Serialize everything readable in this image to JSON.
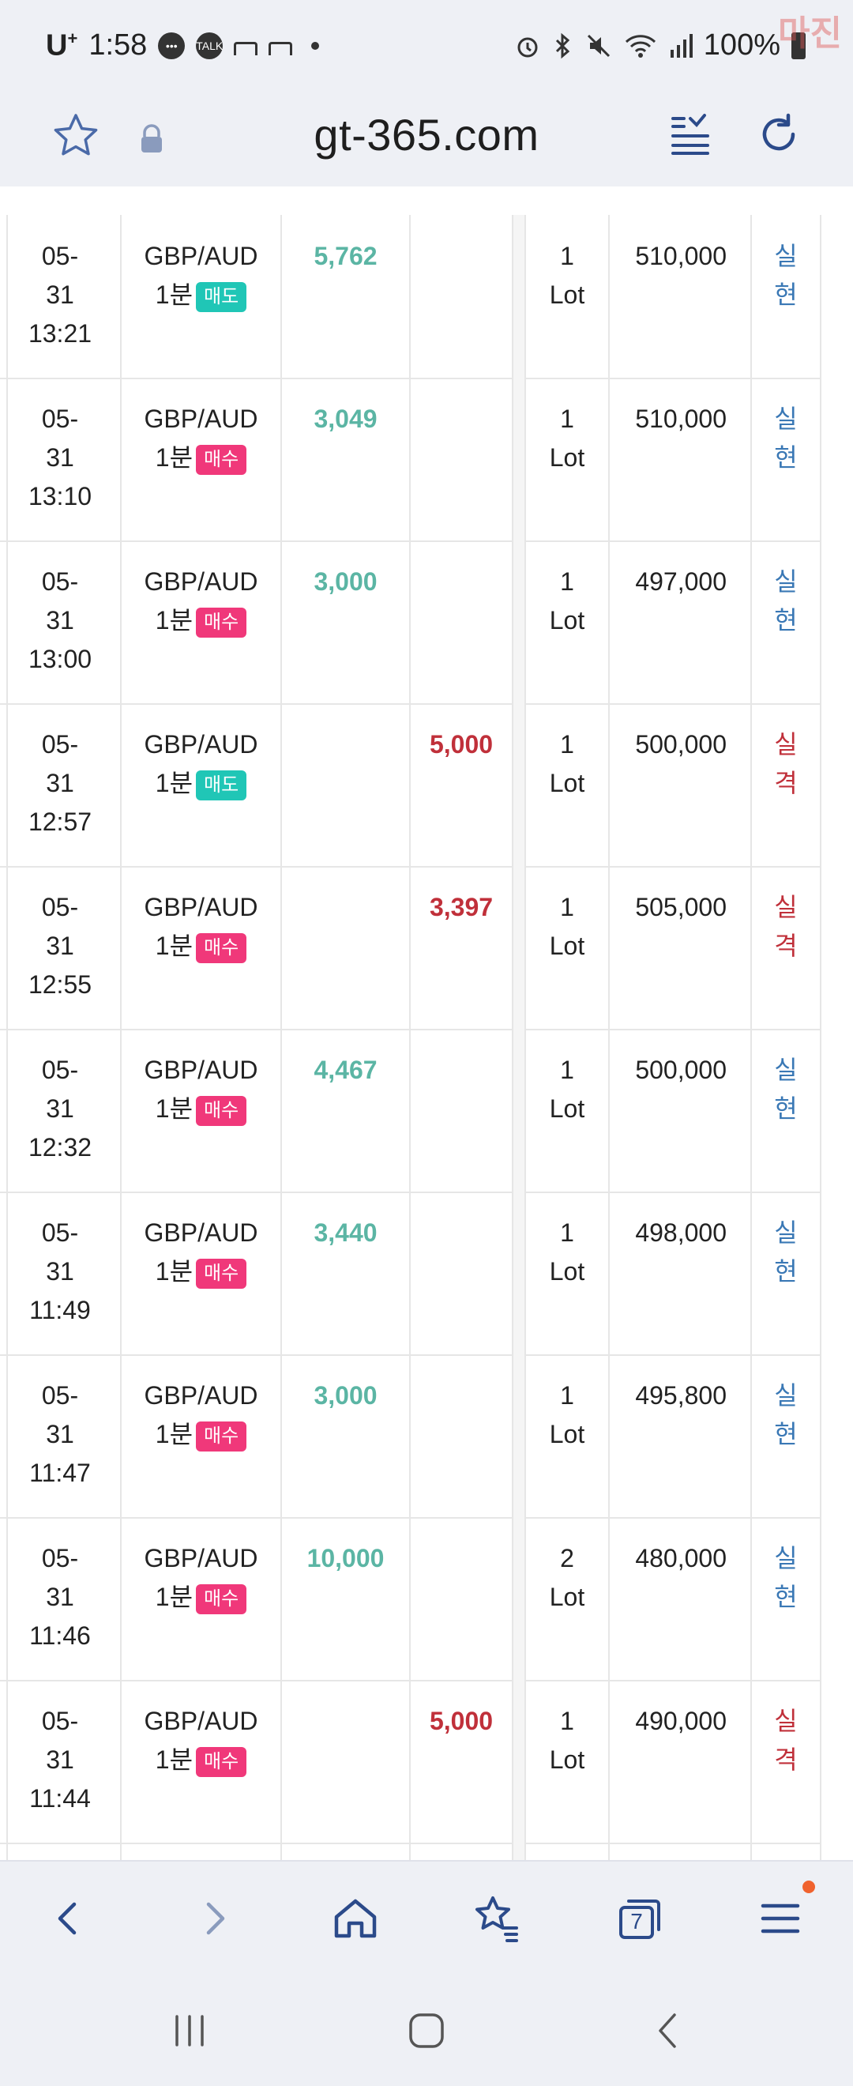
{
  "status_bar": {
    "carrier": "U",
    "carrier_sup": "+",
    "time": "1:58",
    "battery": "100%",
    "watermark": "마진"
  },
  "address_bar": {
    "url": "gt-365.com"
  },
  "colors": {
    "profit": "#5bb5a4",
    "loss": "#c0303a",
    "result_win": "#3a78b5",
    "badge_sell": "#20c6b6",
    "badge_buy": "#f0387a"
  },
  "rows": [
    {
      "date": "05-",
      "day": "31",
      "time": "13:21",
      "pair": "GBP/AUD",
      "period": "1분",
      "side": "매도",
      "side_type": "sell",
      "profit": "5,762",
      "loss": "",
      "lot_num": "1",
      "lot_unit": "Lot",
      "amount": "510,000",
      "res1": "실",
      "res2": "현",
      "res_type": "win"
    },
    {
      "date": "05-",
      "day": "31",
      "time": "13:10",
      "pair": "GBP/AUD",
      "period": "1분",
      "side": "매수",
      "side_type": "buy",
      "profit": "3,049",
      "loss": "",
      "lot_num": "1",
      "lot_unit": "Lot",
      "amount": "510,000",
      "res1": "실",
      "res2": "현",
      "res_type": "win"
    },
    {
      "date": "05-",
      "day": "31",
      "time": "13:00",
      "pair": "GBP/AUD",
      "period": "1분",
      "side": "매수",
      "side_type": "buy",
      "profit": "3,000",
      "loss": "",
      "lot_num": "1",
      "lot_unit": "Lot",
      "amount": "497,000",
      "res1": "실",
      "res2": "현",
      "res_type": "win"
    },
    {
      "date": "05-",
      "day": "31",
      "time": "12:57",
      "pair": "GBP/AUD",
      "period": "1분",
      "side": "매도",
      "side_type": "sell",
      "profit": "",
      "loss": "5,000",
      "lot_num": "1",
      "lot_unit": "Lot",
      "amount": "500,000",
      "res1": "실",
      "res2": "격",
      "res_type": "lose"
    },
    {
      "date": "05-",
      "day": "31",
      "time": "12:55",
      "pair": "GBP/AUD",
      "period": "1분",
      "side": "매수",
      "side_type": "buy",
      "profit": "",
      "loss": "3,397",
      "lot_num": "1",
      "lot_unit": "Lot",
      "amount": "505,000",
      "res1": "실",
      "res2": "격",
      "res_type": "lose"
    },
    {
      "date": "05-",
      "day": "31",
      "time": "12:32",
      "pair": "GBP/AUD",
      "period": "1분",
      "side": "매수",
      "side_type": "buy",
      "profit": "4,467",
      "loss": "",
      "lot_num": "1",
      "lot_unit": "Lot",
      "amount": "500,000",
      "res1": "실",
      "res2": "현",
      "res_type": "win"
    },
    {
      "date": "05-",
      "day": "31",
      "time": "11:49",
      "pair": "GBP/AUD",
      "period": "1분",
      "side": "매수",
      "side_type": "buy",
      "profit": "3,440",
      "loss": "",
      "lot_num": "1",
      "lot_unit": "Lot",
      "amount": "498,000",
      "res1": "실",
      "res2": "현",
      "res_type": "win"
    },
    {
      "date": "05-",
      "day": "31",
      "time": "11:47",
      "pair": "GBP/AUD",
      "period": "1분",
      "side": "매수",
      "side_type": "buy",
      "profit": "3,000",
      "loss": "",
      "lot_num": "1",
      "lot_unit": "Lot",
      "amount": "495,800",
      "res1": "실",
      "res2": "현",
      "res_type": "win"
    },
    {
      "date": "05-",
      "day": "31",
      "time": "11:46",
      "pair": "GBP/AUD",
      "period": "1분",
      "side": "매수",
      "side_type": "buy",
      "profit": "10,000",
      "loss": "",
      "lot_num": "2",
      "lot_unit": "Lot",
      "amount": "480,000",
      "res1": "실",
      "res2": "현",
      "res_type": "win"
    },
    {
      "date": "05-",
      "day": "31",
      "time": "11:44",
      "pair": "GBP/AUD",
      "period": "1분",
      "side": "매수",
      "side_type": "buy",
      "profit": "",
      "loss": "5,000",
      "lot_num": "1",
      "lot_unit": "Lot",
      "amount": "490,000",
      "res1": "실",
      "res2": "격",
      "res_type": "lose"
    }
  ],
  "bottom_nav": {
    "tabs_count": "7",
    "icons": [
      "back-icon",
      "forward-icon",
      "home-icon",
      "bookmarks-icon",
      "tabs-icon",
      "menu-icon"
    ]
  },
  "system_nav": {
    "icons": [
      "recent-apps-icon",
      "home-circle-icon",
      "system-back-icon"
    ]
  }
}
